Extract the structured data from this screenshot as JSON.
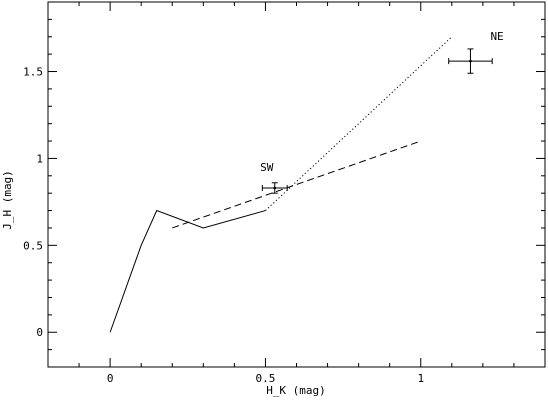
{
  "chart_data": {
    "type": "line",
    "title": "",
    "xlabel": "H_K (mag)",
    "ylabel": "J_H (mag)",
    "xlim": [
      -0.2,
      1.4
    ],
    "ylim": [
      -0.2,
      1.9
    ],
    "x_ticks": [
      0,
      0.5,
      1
    ],
    "x_tick_labels": [
      "0",
      "0.5",
      "1"
    ],
    "y_ticks": [
      0,
      0.5,
      1,
      1.5
    ],
    "y_tick_labels": [
      "0",
      "0.5",
      "1",
      "1.5"
    ],
    "grid": false,
    "series": [
      {
        "style": "solid",
        "x": [
          0,
          0.1,
          0.15,
          0.3,
          0.5
        ],
        "y": [
          0,
          0.5,
          0.7,
          0.6,
          0.7
        ]
      },
      {
        "style": "dashed",
        "x": [
          0.2,
          1.0
        ],
        "y": [
          0.6,
          1.1
        ]
      },
      {
        "style": "dotted",
        "x": [
          0.5,
          1.1
        ],
        "y": [
          0.7,
          1.7
        ]
      }
    ],
    "points": [
      {
        "label": "SW",
        "x": 0.53,
        "y": 0.83,
        "xerr": 0.04,
        "yerr": 0.03
      },
      {
        "label": "NE",
        "x": 1.16,
        "y": 1.56,
        "xerr": 0.07,
        "yerr": 0.07
      }
    ]
  }
}
